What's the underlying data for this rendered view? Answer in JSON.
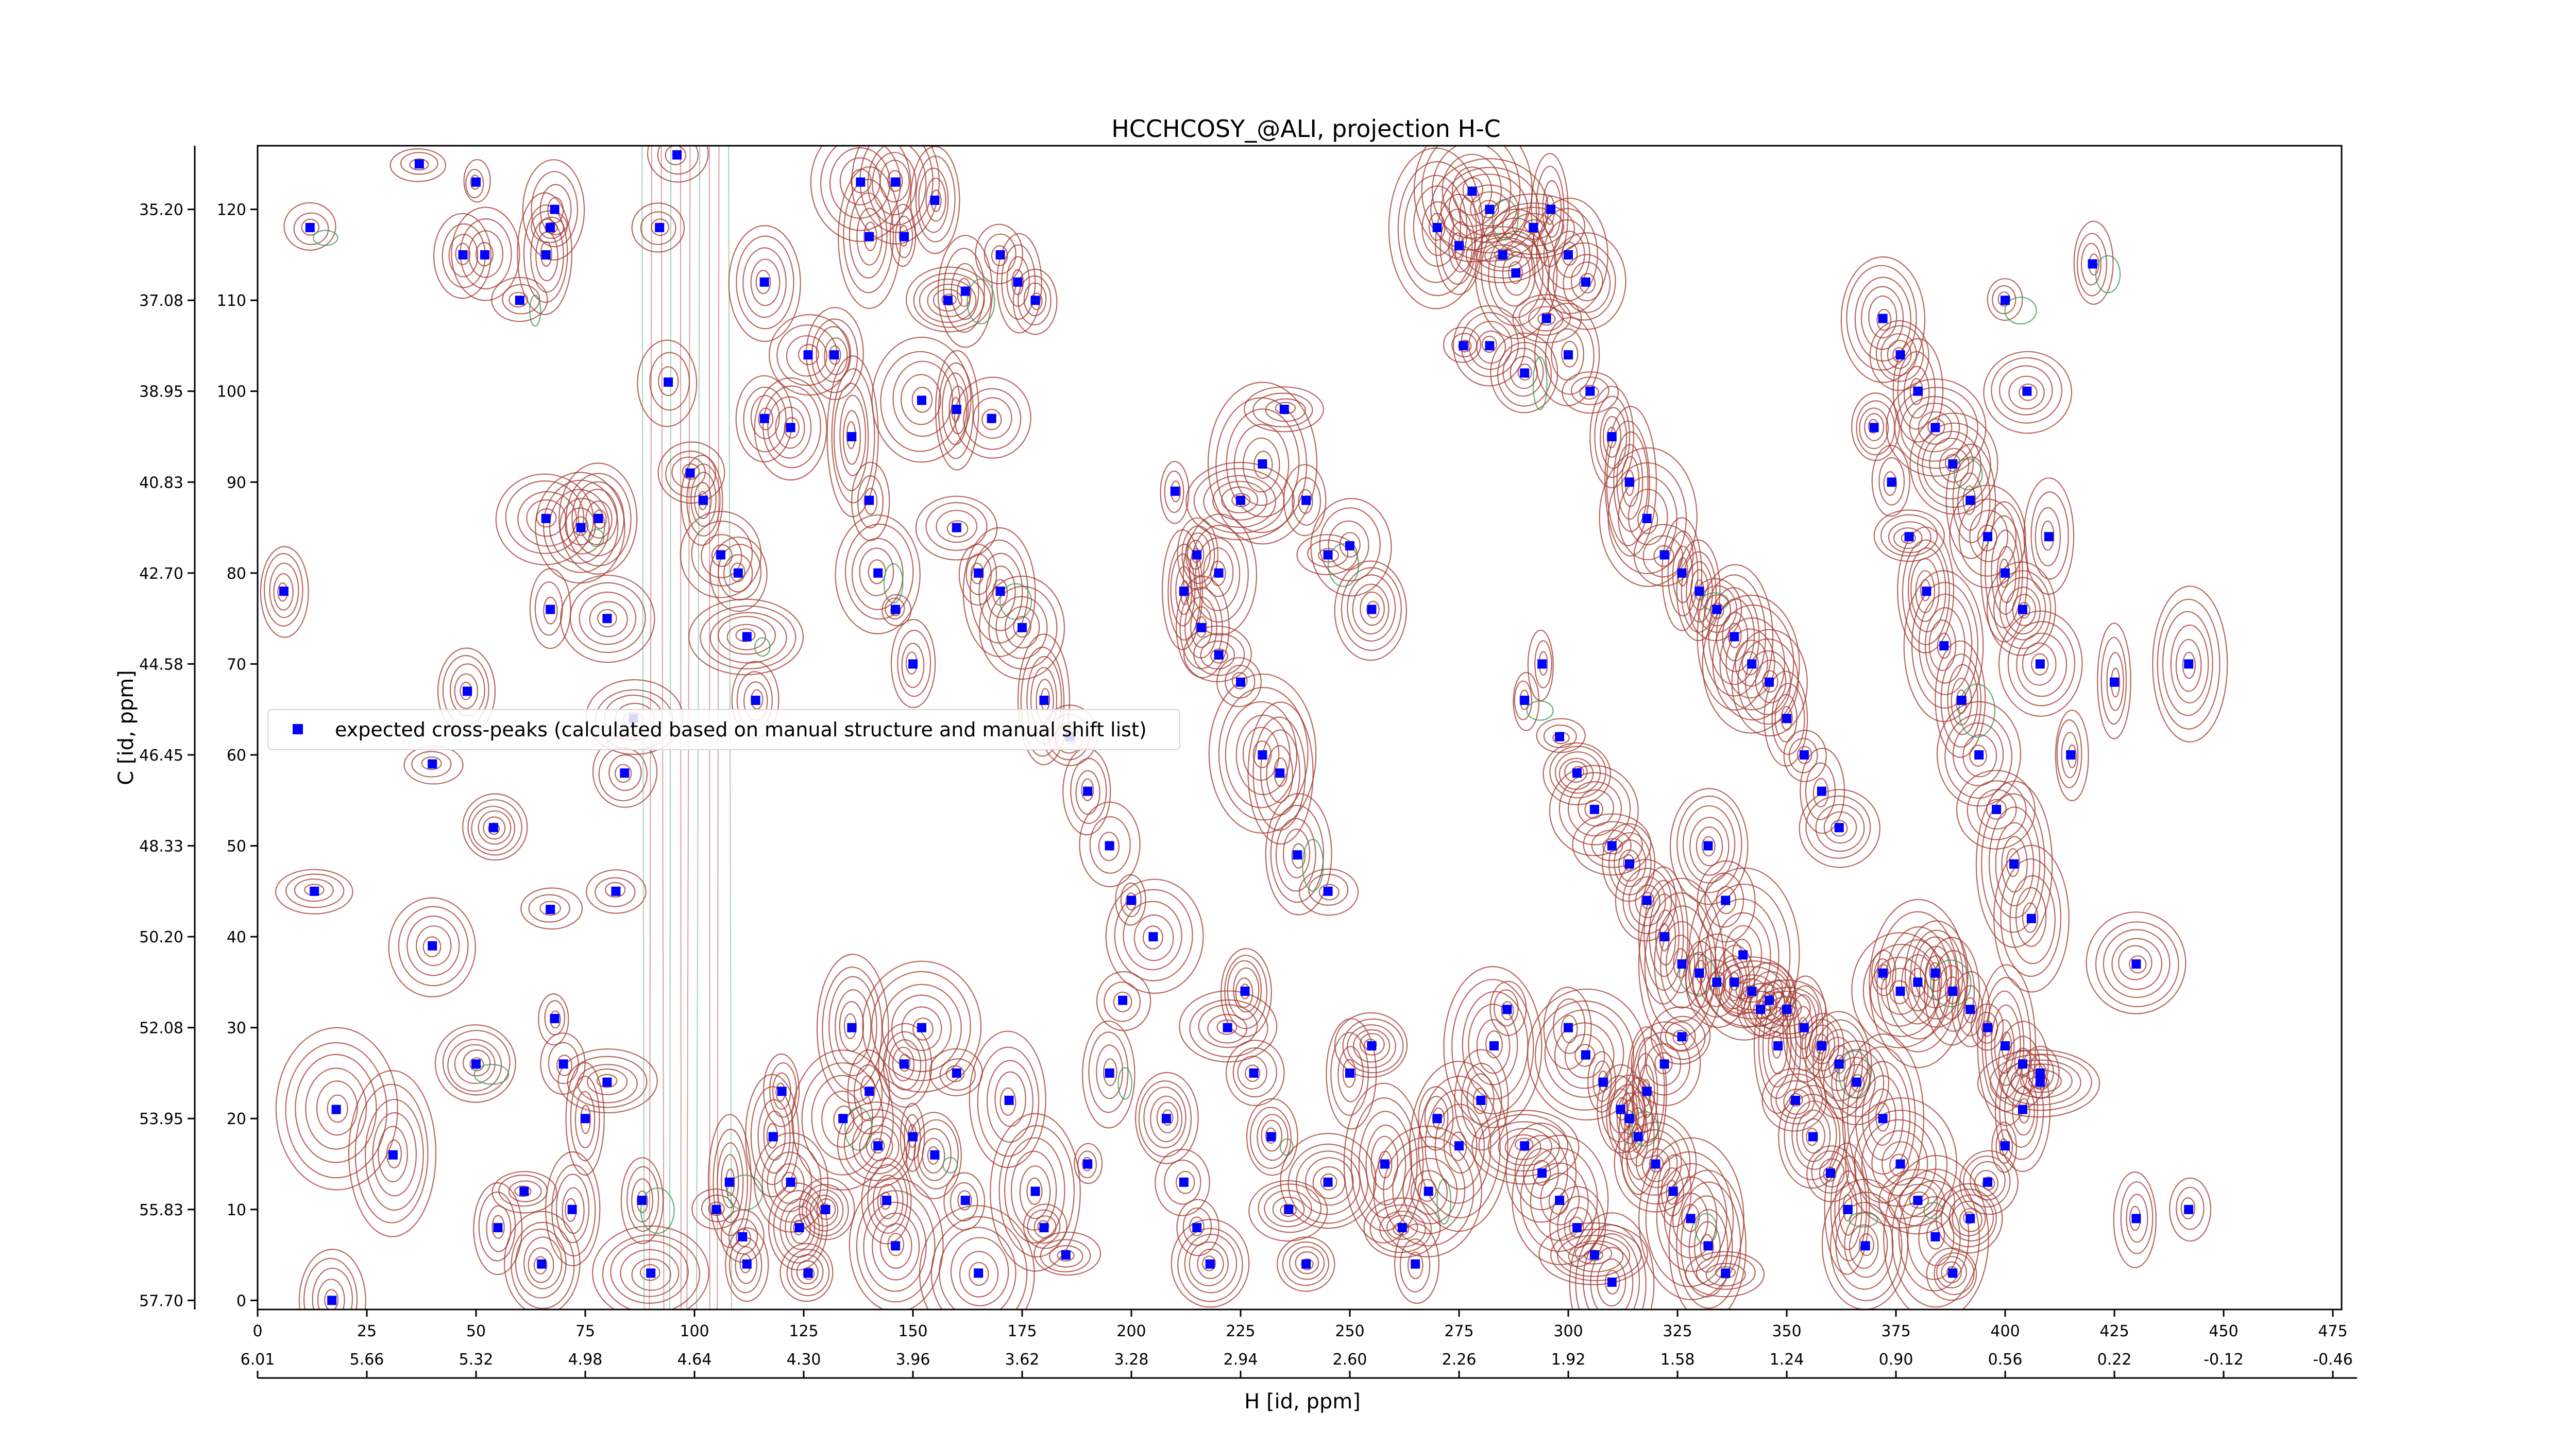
{
  "chart_data": {
    "type": "scatter",
    "title": "HCCHCOSY_@ALI, projection H-C",
    "xlabel": "H [id, ppm]",
    "ylabel": "C [id, ppm]",
    "xlim": [
      0,
      477
    ],
    "ylim": [
      -1,
      127
    ],
    "x_index_ticks": [
      "0",
      "25",
      "50",
      "75",
      "100",
      "125",
      "150",
      "175",
      "200",
      "225",
      "250",
      "275",
      "300",
      "325",
      "350",
      "375",
      "400",
      "425",
      "450",
      "475"
    ],
    "x_ppm_ticks": [
      "6.01",
      "5.66",
      "5.32",
      "4.98",
      "4.64",
      "4.30",
      "3.96",
      "3.62",
      "3.28",
      "2.94",
      "2.60",
      "2.26",
      "1.92",
      "1.58",
      "1.24",
      "0.90",
      "0.56",
      "0.22",
      "-0.12",
      "-0.46"
    ],
    "y_index_ticks": [
      "0",
      "10",
      "20",
      "30",
      "40",
      "50",
      "60",
      "70",
      "80",
      "90",
      "100",
      "110",
      "120"
    ],
    "y_ppm_ticks": [
      "57.70",
      "55.83",
      "53.95",
      "52.08",
      "50.20",
      "48.33",
      "46.45",
      "44.58",
      "42.70",
      "40.83",
      "38.95",
      "37.08",
      "35.20"
    ],
    "grid": false,
    "legend": {
      "placement": "center-left",
      "label": "expected cross-peaks (calculated based on manual structure and manual shift list)"
    },
    "colors": {
      "positive_contours": "#a0362c",
      "negative_contours": "#3f9a5a",
      "peaks": "#0000ff"
    },
    "series": [
      {
        "name": "expected cross-peaks (calculated based on manual structure and manual shift list)",
        "points": [
          [
            12,
            118
          ],
          [
            17,
            0
          ],
          [
            37,
            125
          ],
          [
            47,
            115
          ],
          [
            50,
            123
          ],
          [
            52,
            115
          ],
          [
            66,
            115
          ],
          [
            67,
            118
          ],
          [
            68,
            120
          ],
          [
            60,
            110
          ],
          [
            6,
            78
          ],
          [
            13,
            45
          ],
          [
            18,
            21
          ],
          [
            31,
            16
          ],
          [
            40,
            59
          ],
          [
            40,
            39
          ],
          [
            54,
            52
          ],
          [
            48,
            67
          ],
          [
            50,
            26
          ],
          [
            61,
            12
          ],
          [
            55,
            8
          ],
          [
            65,
            4
          ],
          [
            67,
            76
          ],
          [
            67,
            43
          ],
          [
            68,
            31
          ],
          [
            70,
            26
          ],
          [
            66,
            86
          ],
          [
            74,
            85
          ],
          [
            78,
            86
          ],
          [
            80,
            75
          ],
          [
            82,
            45
          ],
          [
            84,
            58
          ],
          [
            86,
            64
          ],
          [
            72,
            10
          ],
          [
            75,
            20
          ],
          [
            80,
            24
          ],
          [
            88,
            11
          ],
          [
            90,
            3
          ],
          [
            92,
            118
          ],
          [
            96,
            126
          ],
          [
            94,
            101
          ],
          [
            99,
            91
          ],
          [
            102,
            88
          ],
          [
            106,
            82
          ],
          [
            110,
            80
          ],
          [
            112,
            73
          ],
          [
            114,
            66
          ],
          [
            116,
            112
          ],
          [
            116,
            97
          ],
          [
            122,
            96
          ],
          [
            126,
            104
          ],
          [
            132,
            104
          ],
          [
            136,
            95
          ],
          [
            140,
            88
          ],
          [
            142,
            80
          ],
          [
            146,
            76
          ],
          [
            150,
            70
          ],
          [
            138,
            123
          ],
          [
            146,
            123
          ],
          [
            155,
            121
          ],
          [
            140,
            117
          ],
          [
            148,
            117
          ],
          [
            158,
            110
          ],
          [
            162,
            111
          ],
          [
            152,
            99
          ],
          [
            160,
            98
          ],
          [
            168,
            97
          ],
          [
            170,
            115
          ],
          [
            174,
            112
          ],
          [
            178,
            110
          ],
          [
            160,
            85
          ],
          [
            165,
            80
          ],
          [
            170,
            78
          ],
          [
            175,
            74
          ],
          [
            180,
            66
          ],
          [
            186,
            62
          ],
          [
            190,
            56
          ],
          [
            195,
            50
          ],
          [
            200,
            44
          ],
          [
            205,
            40
          ],
          [
            105,
            10
          ],
          [
            108,
            13
          ],
          [
            111,
            7
          ],
          [
            112,
            4
          ],
          [
            118,
            18
          ],
          [
            120,
            23
          ],
          [
            122,
            13
          ],
          [
            124,
            8
          ],
          [
            126,
            3
          ],
          [
            130,
            10
          ],
          [
            134,
            20
          ],
          [
            136,
            30
          ],
          [
            140,
            23
          ],
          [
            142,
            17
          ],
          [
            144,
            11
          ],
          [
            146,
            6
          ],
          [
            148,
            26
          ],
          [
            150,
            18
          ],
          [
            152,
            30
          ],
          [
            155,
            16
          ],
          [
            160,
            25
          ],
          [
            162,
            11
          ],
          [
            165,
            3
          ],
          [
            172,
            22
          ],
          [
            178,
            12
          ],
          [
            180,
            8
          ],
          [
            185,
            5
          ],
          [
            190,
            15
          ],
          [
            195,
            25
          ],
          [
            198,
            33
          ],
          [
            210,
            89
          ],
          [
            215,
            82
          ],
          [
            220,
            80
          ],
          [
            225,
            88
          ],
          [
            230,
            92
          ],
          [
            235,
            98
          ],
          [
            240,
            88
          ],
          [
            245,
            82
          ],
          [
            250,
            83
          ],
          [
            255,
            76
          ],
          [
            212,
            78
          ],
          [
            216,
            74
          ],
          [
            220,
            71
          ],
          [
            225,
            68
          ],
          [
            230,
            60
          ],
          [
            234,
            58
          ],
          [
            238,
            49
          ],
          [
            245,
            45
          ],
          [
            208,
            20
          ],
          [
            212,
            13
          ],
          [
            215,
            8
          ],
          [
            218,
            4
          ],
          [
            222,
            30
          ],
          [
            226,
            34
          ],
          [
            228,
            25
          ],
          [
            232,
            18
          ],
          [
            236,
            10
          ],
          [
            240,
            4
          ],
          [
            245,
            13
          ],
          [
            250,
            25
          ],
          [
            255,
            28
          ],
          [
            258,
            15
          ],
          [
            262,
            8
          ],
          [
            265,
            4
          ],
          [
            268,
            12
          ],
          [
            270,
            20
          ],
          [
            275,
            17
          ],
          [
            280,
            22
          ],
          [
            283,
            28
          ],
          [
            286,
            32
          ],
          [
            270,
            118
          ],
          [
            275,
            116
          ],
          [
            278,
            122
          ],
          [
            282,
            120
          ],
          [
            285,
            115
          ],
          [
            288,
            113
          ],
          [
            292,
            118
          ],
          [
            296,
            120
          ],
          [
            300,
            115
          ],
          [
            304,
            112
          ],
          [
            276,
            105
          ],
          [
            282,
            105
          ],
          [
            290,
            102
          ],
          [
            295,
            108
          ],
          [
            300,
            104
          ],
          [
            305,
            100
          ],
          [
            310,
            95
          ],
          [
            314,
            90
          ],
          [
            318,
            86
          ],
          [
            322,
            82
          ],
          [
            326,
            80
          ],
          [
            330,
            78
          ],
          [
            334,
            76
          ],
          [
            338,
            73
          ],
          [
            342,
            70
          ],
          [
            346,
            68
          ],
          [
            350,
            64
          ],
          [
            354,
            60
          ],
          [
            358,
            56
          ],
          [
            362,
            52
          ],
          [
            290,
            66
          ],
          [
            294,
            70
          ],
          [
            298,
            62
          ],
          [
            302,
            58
          ],
          [
            306,
            54
          ],
          [
            310,
            50
          ],
          [
            314,
            48
          ],
          [
            318,
            44
          ],
          [
            322,
            40
          ],
          [
            326,
            37
          ],
          [
            330,
            36
          ],
          [
            334,
            35
          ],
          [
            338,
            35
          ],
          [
            342,
            34
          ],
          [
            346,
            33
          ],
          [
            350,
            32
          ],
          [
            354,
            30
          ],
          [
            358,
            28
          ],
          [
            362,
            26
          ],
          [
            366,
            24
          ],
          [
            300,
            30
          ],
          [
            304,
            27
          ],
          [
            308,
            24
          ],
          [
            312,
            21
          ],
          [
            316,
            18
          ],
          [
            320,
            15
          ],
          [
            324,
            12
          ],
          [
            328,
            9
          ],
          [
            332,
            6
          ],
          [
            336,
            3
          ],
          [
            290,
            17
          ],
          [
            294,
            14
          ],
          [
            298,
            11
          ],
          [
            302,
            8
          ],
          [
            306,
            5
          ],
          [
            310,
            2
          ],
          [
            314,
            20
          ],
          [
            318,
            23
          ],
          [
            322,
            26
          ],
          [
            326,
            29
          ],
          [
            370,
            96
          ],
          [
            374,
            90
          ],
          [
            378,
            84
          ],
          [
            382,
            78
          ],
          [
            386,
            72
          ],
          [
            390,
            66
          ],
          [
            394,
            60
          ],
          [
            398,
            54
          ],
          [
            402,
            48
          ],
          [
            406,
            42
          ],
          [
            372,
            108
          ],
          [
            376,
            104
          ],
          [
            380,
            100
          ],
          [
            384,
            96
          ],
          [
            388,
            92
          ],
          [
            392,
            88
          ],
          [
            396,
            84
          ],
          [
            400,
            80
          ],
          [
            404,
            76
          ],
          [
            408,
            70
          ],
          [
            372,
            36
          ],
          [
            376,
            34
          ],
          [
            380,
            35
          ],
          [
            384,
            36
          ],
          [
            388,
            34
          ],
          [
            392,
            32
          ],
          [
            396,
            30
          ],
          [
            400,
            28
          ],
          [
            404,
            26
          ],
          [
            408,
            24
          ],
          [
            372,
            20
          ],
          [
            376,
            15
          ],
          [
            380,
            11
          ],
          [
            384,
            7
          ],
          [
            388,
            3
          ],
          [
            392,
            9
          ],
          [
            396,
            13
          ],
          [
            400,
            17
          ],
          [
            404,
            21
          ],
          [
            408,
            25
          ],
          [
            360,
            14
          ],
          [
            364,
            10
          ],
          [
            368,
            6
          ],
          [
            356,
            18
          ],
          [
            352,
            22
          ],
          [
            348,
            28
          ],
          [
            344,
            32
          ],
          [
            340,
            38
          ],
          [
            336,
            44
          ],
          [
            332,
            50
          ],
          [
            420,
            114
          ],
          [
            425,
            68
          ],
          [
            430,
            37
          ],
          [
            442,
            70
          ],
          [
            442,
            10
          ],
          [
            430,
            9
          ],
          [
            415,
            60
          ],
          [
            410,
            84
          ],
          [
            405,
            100
          ],
          [
            400,
            110
          ]
        ]
      }
    ]
  }
}
